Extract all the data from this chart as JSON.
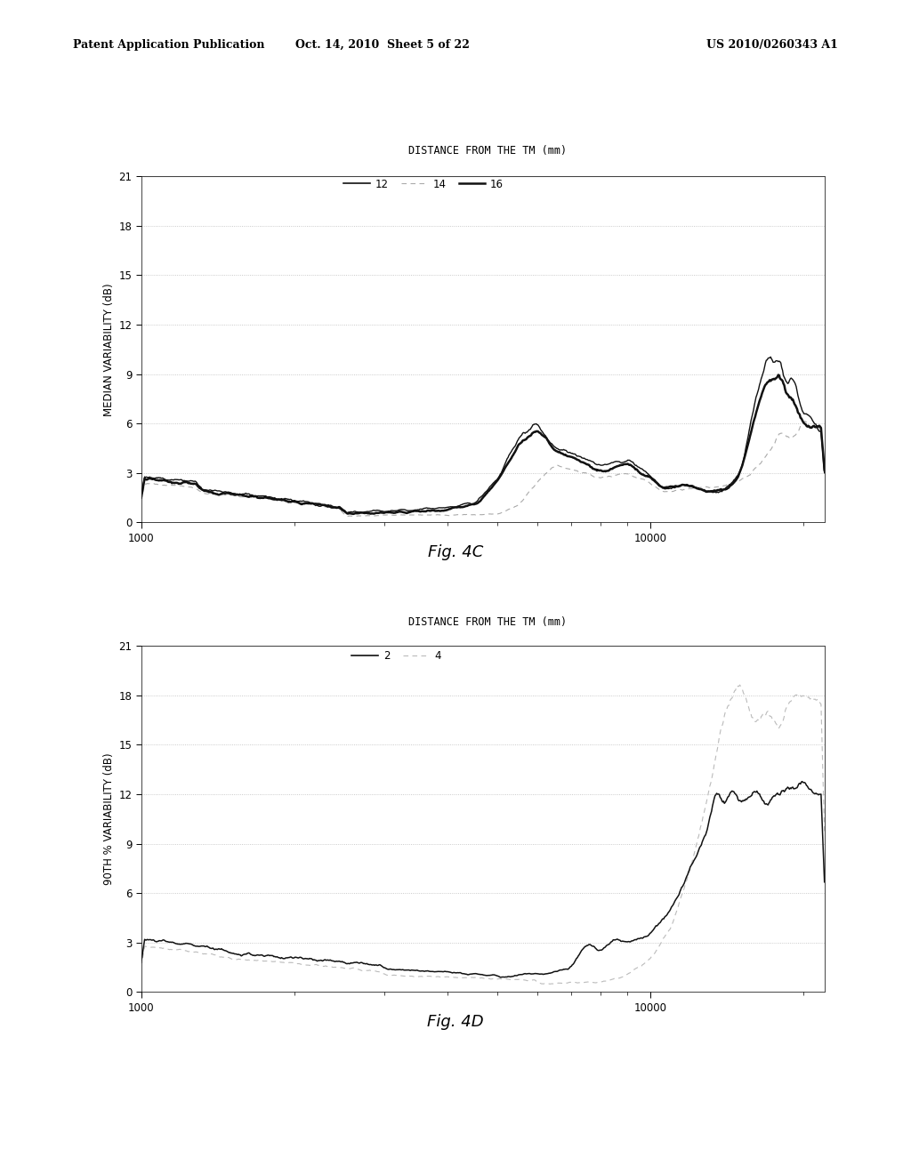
{
  "header_left": "Patent Application Publication",
  "header_mid": "Oct. 14, 2010  Sheet 5 of 22",
  "header_right": "US 2010/0260343 A1",
  "fig4c": {
    "title": "DISTANCE FROM THE TM (mm)",
    "legend_labels": [
      "12",
      "14",
      "16"
    ],
    "ylabel": "MEDIAN VARIABILITY (dB)",
    "yticks": [
      0,
      3,
      6,
      9,
      12,
      15,
      18,
      21
    ],
    "ymax": 21,
    "fig_label": "Fig. 4C"
  },
  "fig4d": {
    "title": "DISTANCE FROM THE TM (mm)",
    "legend_labels": [
      "2",
      "4"
    ],
    "ylabel": "90TH % VARIABILITY (dB)",
    "yticks": [
      0,
      3,
      6,
      9,
      12,
      15,
      18,
      21
    ],
    "ymax": 21,
    "fig_label": "Fig. 4D"
  },
  "bg_color": "#ffffff",
  "line_color_solid": "#111111",
  "grid_color_dotted": "#bbbbbb",
  "grid_color_top": "#555555"
}
